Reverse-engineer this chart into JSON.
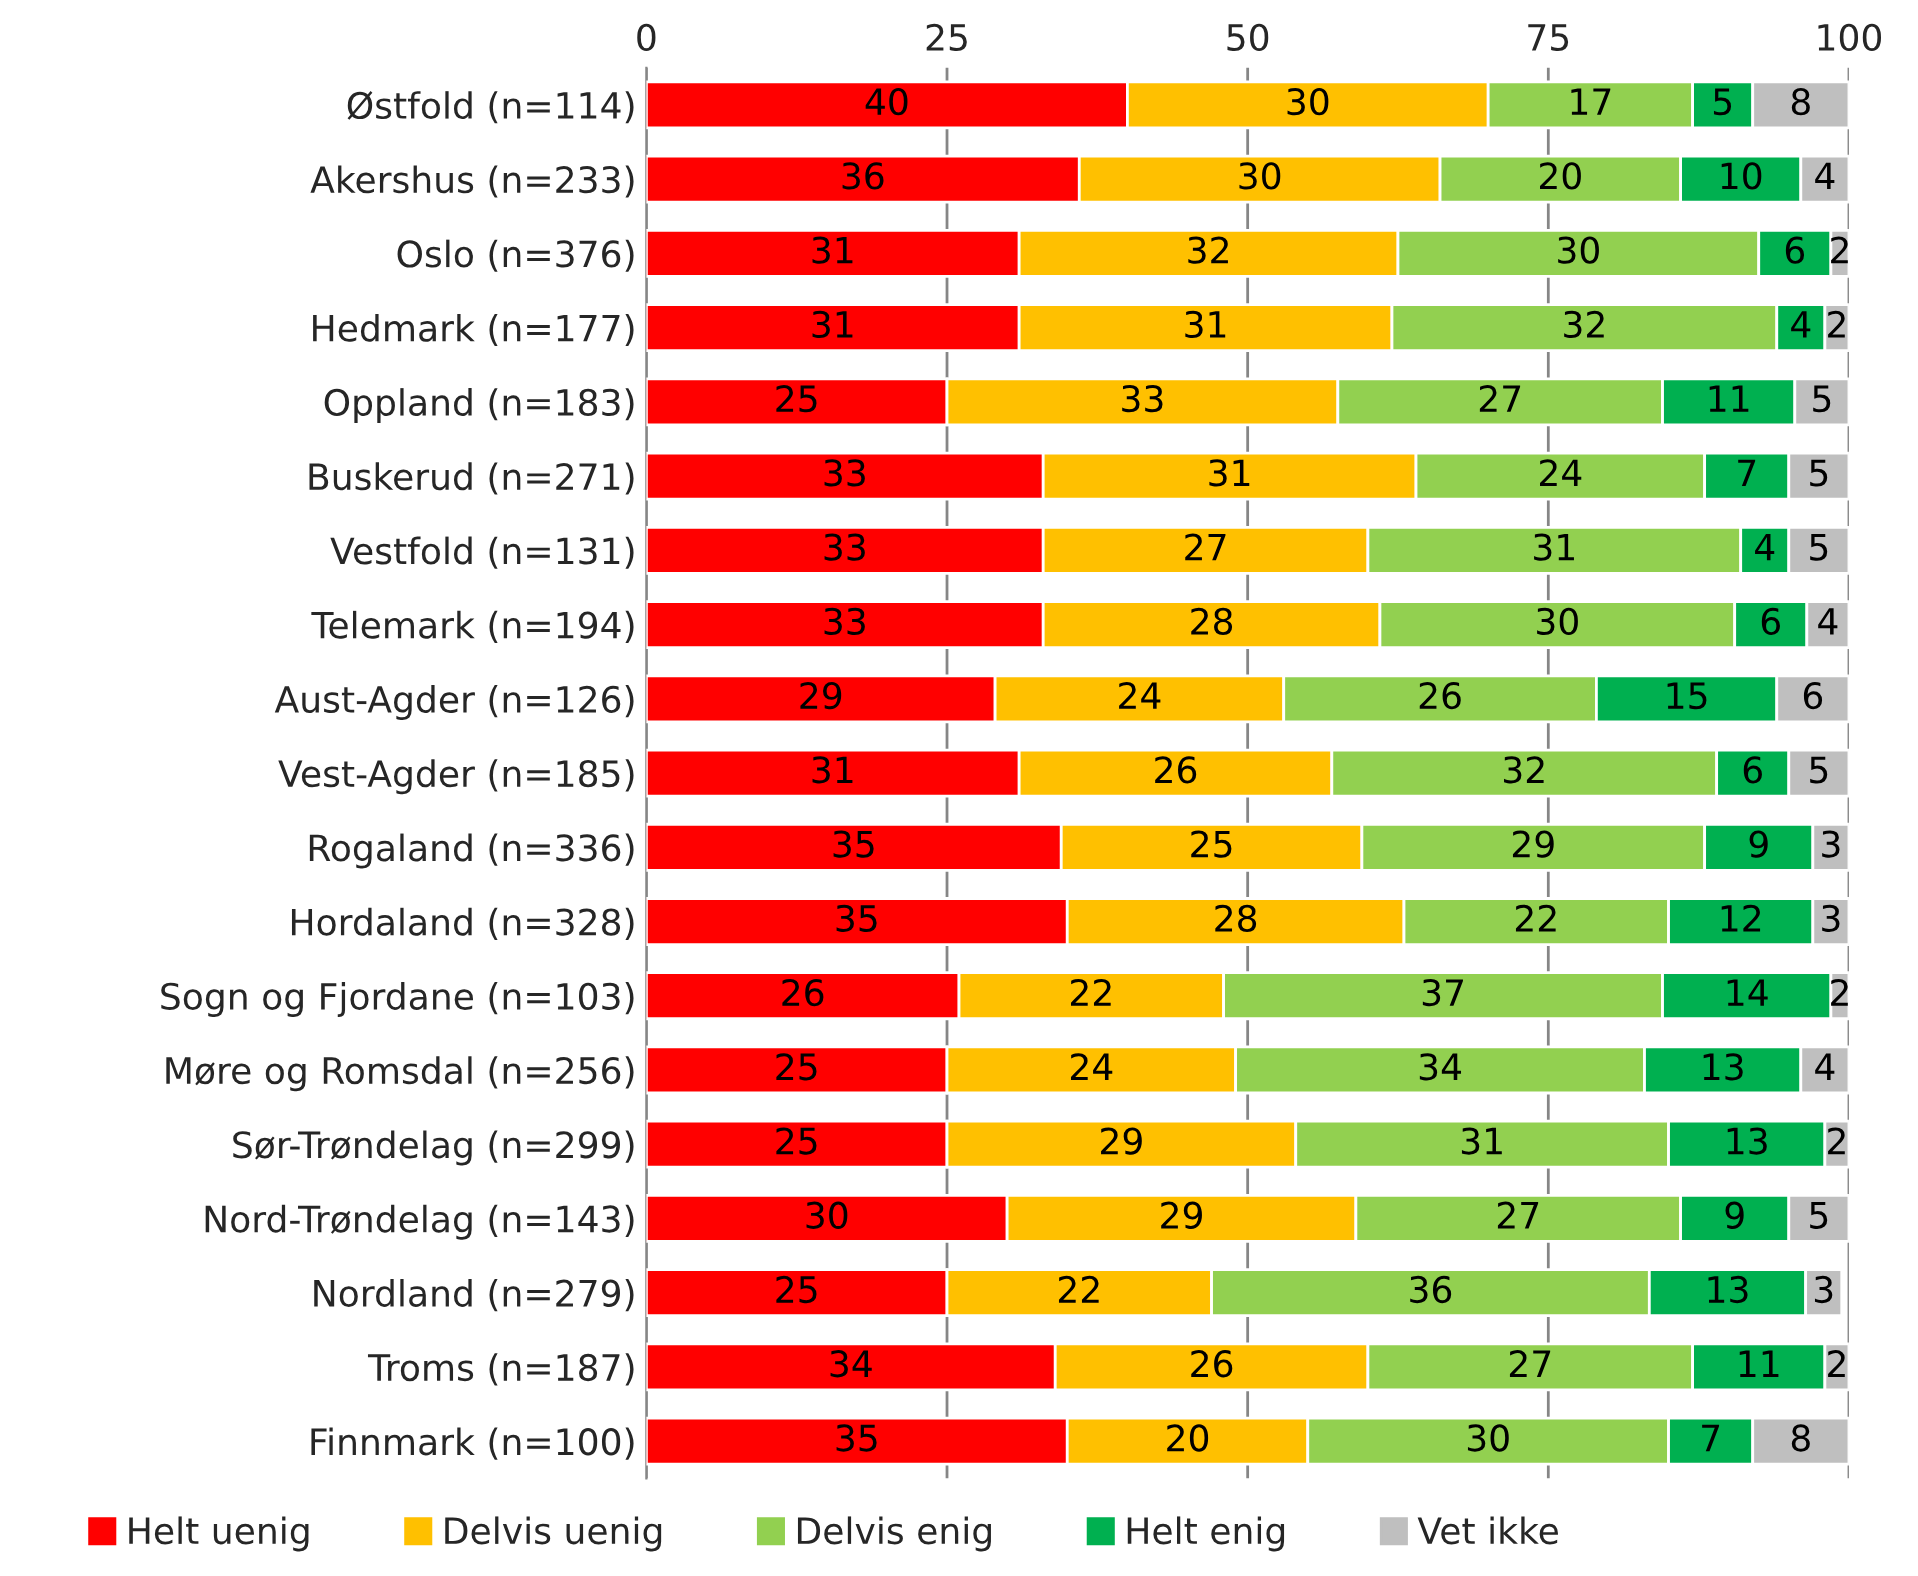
{
  "chart_data": {
    "type": "bar",
    "orientation": "horizontal",
    "stacked": true,
    "grid": "x",
    "legend": "bottom",
    "categories": [
      "Østfold (n=114)",
      "Akershus (n=233)",
      "Oslo (n=376)",
      "Hedmark (n=177)",
      "Oppland (n=183)",
      "Buskerud (n=271)",
      "Vestfold (n=131)",
      "Telemark (n=194)",
      "Aust-Agder (n=126)",
      "Vest-Agder (n=185)",
      "Rogaland (n=336)",
      "Hordaland (n=328)",
      "Sogn og Fjordane (n=103)",
      "Møre og Romsdal (n=256)",
      "Sør-Trøndelag (n=299)",
      "Nord-Trøndelag (n=143)",
      "Nordland (n=279)",
      "Troms (n=187)",
      "Finnmark (n=100)"
    ],
    "xlim": [
      0,
      100
    ],
    "xticks": [
      0,
      25,
      50,
      75,
      100
    ],
    "series": [
      {
        "name": "Helt uenig",
        "color": "#ff0000",
        "values": [
          40,
          36,
          31,
          31,
          25,
          33,
          33,
          33,
          29,
          31,
          34.5,
          35,
          26,
          25,
          25,
          30,
          25,
          34,
          35
        ],
        "value_labels": [
          "40",
          "36",
          "31",
          "31",
          "25",
          "33",
          "33",
          "33",
          "29",
          "31",
          "35",
          "35",
          "26",
          "25",
          "25",
          "30",
          "25",
          "34",
          "35"
        ]
      },
      {
        "name": "Delvis uenig",
        "color": "#ffc000",
        "values": [
          30,
          30,
          31.5,
          31,
          32.5,
          31,
          27,
          28,
          24,
          26,
          25,
          28,
          22,
          24,
          29,
          29,
          22,
          26,
          20
        ],
        "value_labels": [
          "30",
          "30",
          "32",
          "31",
          "33",
          "31",
          "27",
          "28",
          "24",
          "26",
          "25",
          "28",
          "22",
          "24",
          "29",
          "29",
          "22",
          "26",
          "20"
        ]
      },
      {
        "name": "Delvis enig",
        "color": "#92d050",
        "values": [
          17,
          20,
          30,
          32,
          27,
          24,
          31,
          29.5,
          26,
          32,
          28.5,
          22,
          36.5,
          34,
          31,
          27,
          36.4,
          27,
          30
        ],
        "value_labels": [
          "17",
          "20",
          "30",
          "32",
          "27",
          "24",
          "31",
          "30",
          "26",
          "32",
          "29",
          "22",
          "37",
          "34",
          "31",
          "27",
          "36",
          "27",
          "30"
        ]
      },
      {
        "name": "Helt enig",
        "color": "#00b050",
        "values": [
          5,
          10,
          6,
          4,
          11,
          7,
          4,
          6,
          15,
          6,
          9,
          12,
          14,
          13,
          13,
          9,
          13,
          11,
          7
        ],
        "value_labels": [
          "5",
          "10",
          "6",
          "4",
          "11",
          "7",
          "4",
          "6",
          "15",
          "6",
          "9",
          "12",
          "14",
          "13",
          "13",
          "9",
          "13",
          "11",
          "7"
        ]
      },
      {
        "name": "Vet ikke",
        "color": "#bfbfbf",
        "values": [
          8,
          4,
          1.5,
          2,
          4.5,
          5,
          5,
          3.5,
          6,
          5,
          3,
          3,
          1.5,
          4,
          2,
          5,
          3,
          2,
          8
        ],
        "value_labels": [
          "8",
          "4",
          "2",
          "2",
          "5",
          "5",
          "5",
          "4",
          "6",
          "5",
          "3",
          "3",
          "2",
          "4",
          "2",
          "5",
          "3",
          "2",
          "8"
        ]
      }
    ]
  }
}
